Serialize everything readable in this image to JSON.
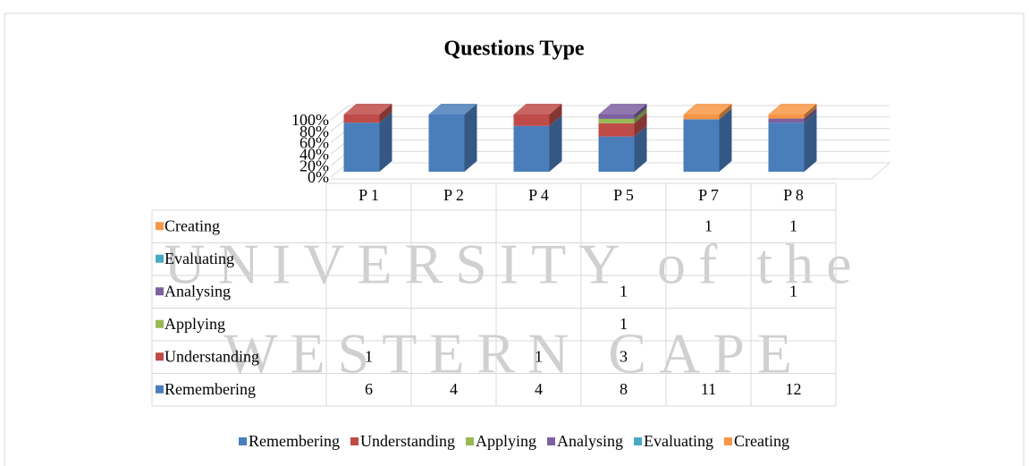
{
  "chart_data": {
    "type": "bar",
    "stacking": "percent",
    "title": "Questions Type",
    "watermark": [
      "UNIVERSITY of the",
      "WESTERN CAPE"
    ],
    "categories": [
      "P 1",
      "P 2",
      "P 4",
      "P 5",
      "P 7",
      "P 8"
    ],
    "series": [
      {
        "name": "Remembering",
        "color": "#4a7ebb",
        "values": [
          6,
          4,
          4,
          8,
          11,
          12
        ]
      },
      {
        "name": "Understanding",
        "color": "#be4b48",
        "values": [
          1,
          null,
          1,
          3,
          null,
          null
        ]
      },
      {
        "name": "Applying",
        "color": "#98b954",
        "values": [
          null,
          null,
          null,
          1,
          null,
          null
        ]
      },
      {
        "name": "Analysing",
        "color": "#7d60a0",
        "values": [
          null,
          null,
          null,
          1,
          null,
          1
        ]
      },
      {
        "name": "Evaluating",
        "color": "#46aac5",
        "values": [
          null,
          null,
          null,
          null,
          null,
          null
        ]
      },
      {
        "name": "Creating",
        "color": "#f79646",
        "values": [
          null,
          null,
          null,
          null,
          1,
          1
        ]
      }
    ],
    "ylim": [
      0,
      100
    ],
    "yticks": [
      {
        "value": 0,
        "label": "0%"
      },
      {
        "value": 20,
        "label": "20%"
      },
      {
        "value": 40,
        "label": "40%"
      },
      {
        "value": 60,
        "label": "60%"
      },
      {
        "value": 80,
        "label": "80%"
      },
      {
        "value": 100,
        "label": "100%"
      }
    ],
    "grid": true,
    "legend": "bottom"
  }
}
